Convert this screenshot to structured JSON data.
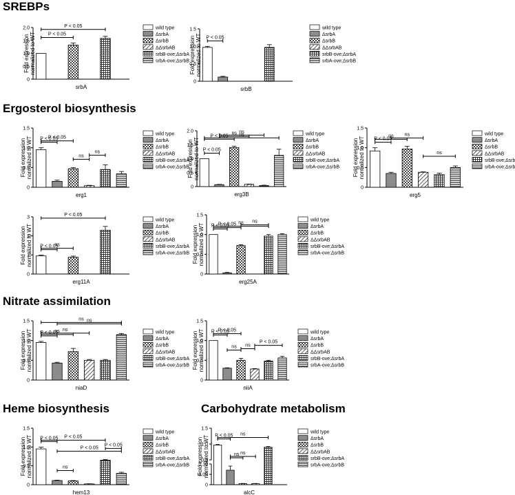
{
  "sections": {
    "srebps": "SREBPs",
    "ergosterol": "Ergosterol biosynthesis",
    "nitrate": "Nitrate assimilation",
    "heme": "Heme biosynthesis",
    "carbohydrate": "Carbohydrate metabolism"
  },
  "legend": [
    "wild type",
    "ΔsrbA",
    "ΔsrbB",
    "ΔΔsrbAB",
    "srbB-ove;ΔsrbA",
    "srbA-ove;ΔsrbB"
  ],
  "ylabel_lines": [
    "Fold expression",
    "normalized to WT"
  ],
  "chart_data": [
    {
      "id": "srbA",
      "type": "bar",
      "title": "srbA",
      "xlabel": "srbA",
      "ylabel": "Fold expression normalized to WT",
      "ylim": [
        0,
        2
      ],
      "yticks": [
        0,
        0.5,
        1,
        1.5,
        2
      ],
      "yticklabels": [
        "0",
        "0.5",
        "1.0",
        "1.5",
        "2.0"
      ],
      "categories": [
        "wild type",
        "ΔsrbA",
        "ΔsrbB",
        "ΔΔsrbAB",
        "srbB-ove;ΔsrbA",
        "srbA-ove;ΔsrbB"
      ],
      "values": [
        1.0,
        null,
        1.32,
        null,
        1.58,
        null
      ],
      "errors": [
        0,
        null,
        0.08,
        null,
        0.08,
        null
      ],
      "annotations": [
        {
          "from": 0,
          "to": 2,
          "label": "P < 0.05"
        },
        {
          "from": 0,
          "to": 4,
          "label": "P < 0.05"
        }
      ]
    },
    {
      "id": "srbB",
      "type": "bar",
      "title": "srbB",
      "xlabel": "srbB",
      "ylabel": "Fold expression normalized to WT",
      "ylim": [
        0,
        1.5
      ],
      "yticks": [
        0,
        0.5,
        1,
        1.5
      ],
      "yticklabels": [
        "0",
        "0.5",
        "1.0",
        "1.5"
      ],
      "categories": [
        "wild type",
        "ΔsrbA",
        "ΔsrbB",
        "ΔΔsrbAB",
        "srbB-ove;ΔsrbA",
        "srbA-ove;ΔsrbB"
      ],
      "values": [
        0.97,
        0.12,
        null,
        null,
        0.97,
        null
      ],
      "errors": [
        0.03,
        0.02,
        null,
        null,
        0.08,
        null
      ],
      "annotations": [
        {
          "from": 0,
          "to": 1,
          "label": "P < 0.05"
        }
      ]
    },
    {
      "id": "erg1",
      "type": "bar",
      "title": "erg1",
      "xlabel": "erg1",
      "ylabel": "Fold expression normalized to WT",
      "ylim": [
        0,
        1.5
      ],
      "yticks": [
        0,
        0.5,
        1,
        1.5
      ],
      "yticklabels": [
        "0",
        "0.5",
        "1.0",
        "1.5"
      ],
      "categories": [
        "wild type",
        "ΔsrbA",
        "ΔsrbB",
        "ΔΔsrbAB",
        "srbB-ove;ΔsrbA",
        "srbA-ove;ΔsrbB"
      ],
      "values": [
        0.95,
        0.15,
        0.47,
        0.04,
        0.45,
        0.34
      ],
      "errors": [
        0.05,
        0.03,
        0.03,
        0.01,
        0.12,
        0.06
      ],
      "annotations": [
        {
          "from": 0,
          "to": 1,
          "label": "P < 0.05"
        },
        {
          "from": 0,
          "to": 2,
          "label": "P < 0.05"
        },
        {
          "from": 2,
          "to": 3,
          "label": "ns"
        },
        {
          "from": 3,
          "to": 4,
          "label": "ns"
        }
      ]
    },
    {
      "id": "erg3B",
      "type": "bar",
      "title": "erg3B",
      "xlabel": "erg3B",
      "ylabel": "Fold expression normalized to WT",
      "ylim": [
        0,
        2
      ],
      "yticks": [
        0,
        0.5,
        1,
        1.5,
        2
      ],
      "yticklabels": [
        "0",
        "0.5",
        "1.0",
        "1.5",
        "2.0"
      ],
      "categories": [
        "wild type",
        "ΔsrbA",
        "ΔsrbB",
        "ΔΔsrbAB",
        "srbB-ove;ΔsrbA",
        "srbA-ove;ΔsrbB"
      ],
      "values": [
        1.0,
        0.07,
        1.4,
        0.08,
        0.04,
        1.12
      ],
      "errors": [
        0,
        0.01,
        0.05,
        0.01,
        0.01,
        0.22
      ],
      "annotations": [
        {
          "from": 0,
          "to": 1,
          "label": "P < 0.05"
        },
        {
          "from": 0,
          "to": 2,
          "label": "P < 0.05"
        },
        {
          "from": 0,
          "to": 5,
          "label": "ns"
        },
        {
          "from": 1,
          "to": 3,
          "label": "ns"
        },
        {
          "from": 1,
          "to": 4,
          "label": "ns"
        }
      ]
    },
    {
      "id": "erg5",
      "type": "bar",
      "title": "erg5",
      "xlabel": "erg5",
      "ylabel": "Fold expression normalized to WT",
      "ylim": [
        0,
        1.5
      ],
      "yticks": [
        0,
        0.5,
        1,
        1.5
      ],
      "yticklabels": [
        "0",
        "0.5",
        "1.0",
        "1.5"
      ],
      "categories": [
        "wild type",
        "ΔsrbA",
        "ΔsrbB",
        "ΔΔsrbAB",
        "srbB-ove;ΔsrbA",
        "srbA-ove;ΔsrbB"
      ],
      "values": [
        0.92,
        0.35,
        0.97,
        0.38,
        0.32,
        0.5
      ],
      "errors": [
        0.08,
        0.03,
        0.07,
        0.01,
        0.04,
        0.04
      ],
      "annotations": [
        {
          "from": 0,
          "to": 1,
          "label": "P < 0.05"
        },
        {
          "from": 0,
          "to": 2,
          "label": "ns"
        },
        {
          "from": 1,
          "to": 3,
          "label": "ns"
        },
        {
          "from": 3,
          "to": 5,
          "label": "ns"
        }
      ]
    },
    {
      "id": "erg11A",
      "type": "bar",
      "title": "erg11A",
      "xlabel": "erg11A",
      "ylabel": "Fold expression normalized to WT",
      "ylim": [
        0,
        3
      ],
      "yticks": [
        0,
        1,
        2,
        3
      ],
      "yticklabels": [
        "0",
        "1",
        "2",
        "3"
      ],
      "categories": [
        "wild type",
        "ΔsrbA",
        "ΔsrbB",
        "ΔΔsrbAB",
        "srbB-ove;ΔsrbA",
        "srbA-ove;ΔsrbB"
      ],
      "values": [
        0.95,
        null,
        0.88,
        null,
        2.3,
        null
      ],
      "errors": [
        0.04,
        null,
        0.06,
        null,
        0.2,
        null
      ],
      "annotations": [
        {
          "from": 0,
          "to": 1,
          "label": "P < 0.05"
        },
        {
          "from": 0,
          "to": 2,
          "label": "ns"
        },
        {
          "from": 0,
          "to": 4,
          "label": "P < 0.05"
        }
      ]
    },
    {
      "id": "erg25A",
      "type": "bar",
      "title": "erg25A",
      "xlabel": "erg25A",
      "ylabel": "Fold expression normalized to WT",
      "ylim": [
        0,
        1.5
      ],
      "yticks": [
        0,
        0.5,
        1,
        1.5
      ],
      "yticklabels": [
        "0",
        "0.5",
        "1.0",
        "1.5"
      ],
      "categories": [
        "wild type",
        "ΔsrbA",
        "ΔsrbB",
        "ΔΔsrbAB",
        "srbB-ove;ΔsrbA",
        "srbA-ove;ΔsrbB"
      ],
      "values": [
        1.0,
        0.03,
        0.72,
        null,
        0.96,
        1.0
      ],
      "errors": [
        0,
        0.01,
        0.02,
        null,
        0.04,
        0.02
      ],
      "annotations": [
        {
          "from": 0,
          "to": 1,
          "label": "P < 0.05"
        },
        {
          "from": 0,
          "to": 2,
          "label": "P < 0.05"
        },
        {
          "from": 0,
          "to": 4,
          "label": "ns"
        },
        {
          "from": 2,
          "to": 4,
          "label": "ns"
        }
      ]
    },
    {
      "id": "niaD",
      "type": "bar",
      "title": "niaD",
      "xlabel": "niaD",
      "ylabel": "Fold expression normalized to WT",
      "ylim": [
        0,
        1.5
      ],
      "yticks": [
        0,
        0.5,
        1,
        1.5
      ],
      "yticklabels": [
        "0",
        "0.5",
        "1.0",
        "1.5"
      ],
      "categories": [
        "wild type",
        "ΔsrbA",
        "ΔsrbB",
        "ΔΔsrbAB",
        "srbB-ove;ΔsrbA",
        "srbA-ove;ΔsrbB"
      ],
      "values": [
        0.95,
        0.43,
        0.72,
        0.5,
        0.5,
        1.15
      ],
      "errors": [
        0.03,
        0.02,
        0.08,
        0.02,
        0.02,
        0.03
      ],
      "annotations": [
        {
          "from": 0,
          "to": 1,
          "label": "P < 0.05"
        },
        {
          "from": 0,
          "to": 2,
          "label": "ns"
        },
        {
          "from": 0,
          "to": 3,
          "label": "ns"
        },
        {
          "from": 1,
          "to": 5,
          "label": "ns"
        },
        {
          "from": 0,
          "to": 5,
          "label": "ns"
        }
      ]
    },
    {
      "id": "niiA",
      "type": "bar",
      "title": "niiA",
      "xlabel": "niiA",
      "ylabel": "Fold expression normalized to WT",
      "ylim": [
        0,
        1.5
      ],
      "yticks": [
        0,
        0.5,
        1,
        1.5
      ],
      "yticklabels": [
        "0",
        "0.5",
        "1.0",
        "1.5"
      ],
      "categories": [
        "wild type",
        "ΔsrbA",
        "ΔsrbB",
        "ΔΔsrbAB",
        "srbB-ove;ΔsrbA",
        "srbA-ove;ΔsrbB"
      ],
      "values": [
        1.0,
        0.3,
        0.5,
        0.28,
        0.48,
        0.56
      ],
      "errors": [
        0,
        0.01,
        0.05,
        0.01,
        0.02,
        0.04
      ],
      "annotations": [
        {
          "from": 0,
          "to": 1,
          "label": "P < 0.05"
        },
        {
          "from": 0,
          "to": 2,
          "label": "P < 0.05"
        },
        {
          "from": 1,
          "to": 2,
          "label": "ns"
        },
        {
          "from": 2,
          "to": 3,
          "label": "ns"
        },
        {
          "from": 3,
          "to": 5,
          "label": "P < 0.05"
        }
      ]
    },
    {
      "id": "hem13",
      "type": "bar",
      "title": "hem13",
      "xlabel": "hem13",
      "ylabel": "Fold expression normalized to WT",
      "ylim": [
        0,
        1.5
      ],
      "yticks": [
        0,
        0.5,
        1,
        1.5
      ],
      "yticklabels": [
        "0",
        "0.5",
        "1.0",
        "1.5"
      ],
      "categories": [
        "wild type",
        "ΔsrbA",
        "ΔsrbB",
        "ΔΔsrbAB",
        "srbB-ove;ΔsrbA",
        "srbA-ove;ΔsrbB"
      ],
      "values": [
        0.95,
        0.11,
        0.1,
        0.02,
        0.65,
        0.3
      ],
      "errors": [
        0.05,
        0.01,
        0.01,
        0.005,
        0.02,
        0.03
      ],
      "annotations": [
        {
          "from": 0,
          "to": 1,
          "label": "P < 0.05"
        },
        {
          "from": 0,
          "to": 4,
          "label": "P < 0.05"
        },
        {
          "from": 1,
          "to": 5,
          "label": "P < 0.05"
        },
        {
          "from": 1,
          "to": 2,
          "label": "ns"
        },
        {
          "from": 4,
          "to": 5,
          "label": "P < 0.05"
        }
      ]
    },
    {
      "id": "alcC",
      "type": "bar",
      "title": "alcC",
      "xlabel": "alcC",
      "ylabel": "Fold expression normalized to WT",
      "ylim": [
        0,
        1.5
      ],
      "broken_axis": true,
      "yticks": [
        0,
        0.05,
        0.1,
        0.5,
        1,
        1.5
      ],
      "yticklabels": [
        "0",
        "0.05",
        "0.10",
        "0.5",
        "1.0",
        "1.5"
      ],
      "categories": [
        "wild type",
        "ΔsrbA",
        "ΔsrbB",
        "ΔΔsrbAB",
        "srbB-ove;ΔsrbA",
        "srbA-ove;ΔsrbB"
      ],
      "values": [
        0.97,
        0.07,
        0.005,
        0.005,
        0.9,
        null
      ],
      "errors": [
        0.02,
        0.02,
        0.001,
        0.001,
        0.02,
        null
      ],
      "annotations": [
        {
          "from": 0,
          "to": 1,
          "label": "P < 0.05"
        },
        {
          "from": 0,
          "to": 4,
          "label": "ns"
        },
        {
          "from": 1,
          "to": 2,
          "label": "ns"
        },
        {
          "from": 1,
          "to": 3,
          "label": "ns"
        }
      ]
    }
  ]
}
